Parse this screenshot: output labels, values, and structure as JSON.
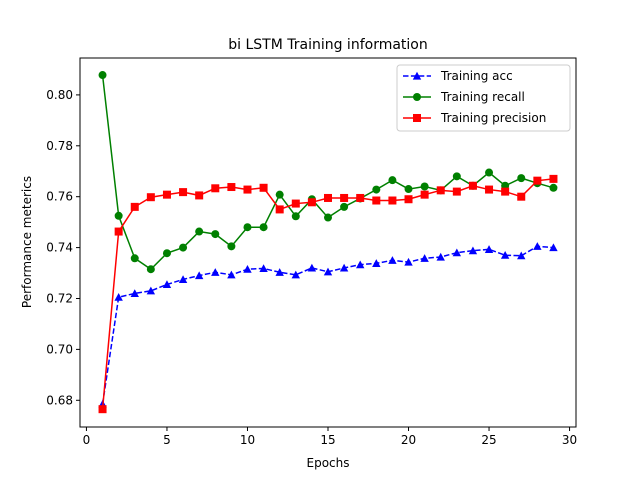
{
  "chart_data": {
    "type": "line",
    "title": "bi LSTM Training information",
    "xlabel": "Epochs",
    "ylabel": "Performance meterics",
    "xlim": [
      -0.4,
      30.4
    ],
    "ylim": [
      0.6695,
      0.8145
    ],
    "xticks": [
      0,
      5,
      10,
      15,
      20,
      25,
      30
    ],
    "xtick_labels": [
      "0",
      "5",
      "10",
      "15",
      "20",
      "25",
      "30"
    ],
    "yticks": [
      0.68,
      0.7,
      0.72,
      0.74,
      0.76,
      0.78,
      0.8
    ],
    "ytick_labels": [
      "0.68",
      "0.70",
      "0.72",
      "0.74",
      "0.76",
      "0.78",
      "0.80"
    ],
    "grid": false,
    "legend_position": "top-right",
    "x": [
      1,
      2,
      3,
      4,
      5,
      6,
      7,
      8,
      9,
      10,
      11,
      12,
      13,
      14,
      15,
      16,
      17,
      18,
      19,
      20,
      21,
      22,
      23,
      24,
      25,
      26,
      27,
      28,
      29
    ],
    "series": [
      {
        "name": "Training acc",
        "color": "#0000ff",
        "linestyle": "dashed",
        "marker": "triangle",
        "values": [
          0.6785,
          0.7205,
          0.722,
          0.723,
          0.7255,
          0.7275,
          0.729,
          0.7303,
          0.7293,
          0.7315,
          0.7318,
          0.7303,
          0.7293,
          0.732,
          0.7305,
          0.732,
          0.7333,
          0.7338,
          0.735,
          0.7343,
          0.7358,
          0.7363,
          0.738,
          0.7388,
          0.7393,
          0.737,
          0.7368,
          0.7405,
          0.74
        ]
      },
      {
        "name": "Training recall",
        "color": "#008000",
        "linestyle": "solid",
        "marker": "circle",
        "values": [
          0.8078,
          0.7525,
          0.7358,
          0.7315,
          0.7378,
          0.74,
          0.7463,
          0.7453,
          0.7405,
          0.748,
          0.748,
          0.7608,
          0.7523,
          0.759,
          0.7518,
          0.756,
          0.7593,
          0.7628,
          0.7665,
          0.763,
          0.764,
          0.7625,
          0.768,
          0.7643,
          0.7695,
          0.7643,
          0.7673,
          0.7653,
          0.7635
        ]
      },
      {
        "name": "Training precision",
        "color": "#ff0000",
        "linestyle": "solid",
        "marker": "square",
        "values": [
          0.6765,
          0.7463,
          0.756,
          0.7598,
          0.7608,
          0.7618,
          0.7605,
          0.7633,
          0.7638,
          0.7628,
          0.7635,
          0.755,
          0.7573,
          0.7578,
          0.7595,
          0.7595,
          0.7595,
          0.7585,
          0.7585,
          0.759,
          0.7608,
          0.7625,
          0.762,
          0.7643,
          0.7628,
          0.762,
          0.76,
          0.7663,
          0.767
        ]
      }
    ]
  }
}
